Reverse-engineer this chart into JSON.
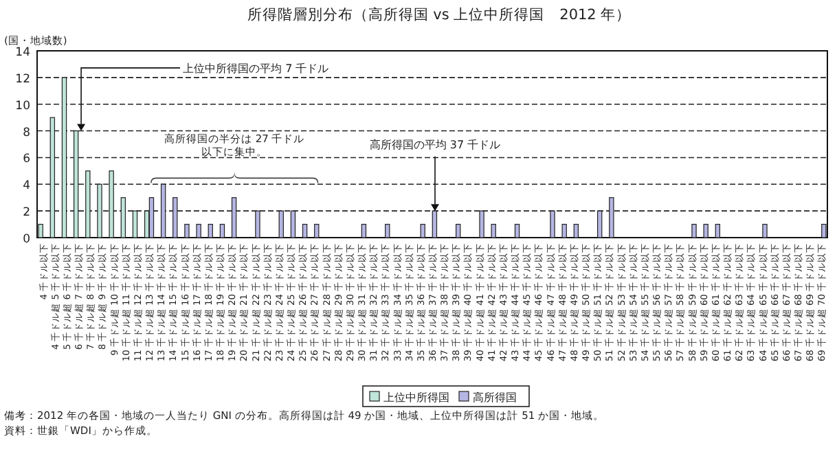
{
  "chart_data": {
    "type": "bar",
    "title": "所得階層別分布（高所得国 vs 上位中所得国　2012 年）",
    "ylabel": "(国・地域数)",
    "categories": [
      "4 千ドル以下",
      "4 千ドル超 5 千ドル以下",
      "5 千ドル超 6 千ドル以下",
      "6 千ドル超 7 千ドル以下",
      "7 千ドル超 8 千ドル以下",
      "8 千ドル超 9 千ドル以下",
      "9 千ドル超 10 千ドル以下",
      "10 千ドル超 11 千ドル以下",
      "11 千ドル超 12 千ドル以下",
      "12 千ドル超 13 千ドル以下",
      "13 千ドル超 14 千ドル以下",
      "14 千ドル超 15 千ドル以下",
      "15 千ドル超 16 千ドル以下",
      "16 千ドル超 17 千ドル以下",
      "17 千ドル超 18 千ドル以下",
      "18 千ドル超 19 千ドル以下",
      "19 千ドル超 20 千ドル以下",
      "20 千ドル超 21 千ドル以下",
      "21 千ドル超 22 千ドル以下",
      "22 千ドル超 23 千ドル以下",
      "23 千ドル超 24 千ドル以下",
      "24 千ドル超 25 千ドル以下",
      "25 千ドル超 26 千ドル以下",
      "26 千ドル超 27 千ドル以下",
      "27 千ドル超 28 千ドル以下",
      "28 千ドル超 29 千ドル以下",
      "29 千ドル超 30 千ドル以下",
      "30 千ドル超 31 千ドル以下",
      "31 千ドル超 32 千ドル以下",
      "32 千ドル超 33 千ドル以下",
      "33 千ドル超 34 千ドル以下",
      "34 千ドル超 35 千ドル以下",
      "35 千ドル超 36 千ドル以下",
      "36 千ドル超 37 千ドル以下",
      "37 千ドル超 38 千ドル以下",
      "38 千ドル超 39 千ドル以下",
      "39 千ドル超 40 千ドル以下",
      "40 千ドル超 41 千ドル以下",
      "41 千ドル超 42 千ドル以下",
      "42 千ドル超 43 千ドル以下",
      "43 千ドル超 44 千ドル以下",
      "44 千ドル超 45 千ドル以下",
      "45 千ドル超 46 千ドル以下",
      "46 千ドル超 47 千ドル以下",
      "47 千ドル超 48 千ドル以下",
      "48 千ドル超 49 千ドル以下",
      "49 千ドル超 50 千ドル以下",
      "50 千ドル超 51 千ドル以下",
      "51 千ドル超 52 千ドル以下",
      "52 千ドル超 53 千ドル以下",
      "53 千ドル超 54 千ドル以下",
      "54 千ドル超 55 千ドル以下",
      "55 千ドル超 56 千ドル以下",
      "56 千ドル超 57 千ドル以下",
      "57 千ドル超 58 千ドル以下",
      "58 千ドル超 59 千ドル以下",
      "59 千ドル超 60 千ドル以下",
      "60 千ドル超 61 千ドル以下",
      "61 千ドル超 62 千ドル以下",
      "62 千ドル超 63 千ドル以下",
      "63 千ドル超 64 千ドル以下",
      "64 千ドル超 65 千ドル以下",
      "65 千ドル超 66 千ドル以下",
      "66 千ドル超 67 千ドル以下",
      "67 千ドル超 68 千ドル以下",
      "68 千ドル超 69 千ドル以下",
      "69 千ドル超 70 千ドル以下"
    ],
    "series": [
      {
        "name": "上位中所得国",
        "color": "#bfe4da",
        "values": [
          1,
          9,
          12,
          8,
          5,
          4,
          5,
          3,
          2,
          2,
          null,
          null,
          null,
          null,
          null,
          null,
          null,
          null,
          null,
          null,
          null,
          null,
          null,
          null,
          null,
          null,
          null,
          null,
          null,
          null,
          null,
          null,
          null,
          null,
          null,
          null,
          null,
          null,
          null,
          null,
          null,
          null,
          null,
          null,
          null,
          null,
          null,
          null,
          null,
          null,
          null,
          null,
          null,
          null,
          null,
          null,
          null,
          null,
          null,
          null,
          null,
          null,
          null,
          null,
          null,
          null,
          null
        ]
      },
      {
        "name": "高所得国",
        "color": "#b6b6e4",
        "values": [
          null,
          null,
          null,
          null,
          null,
          null,
          null,
          null,
          null,
          3,
          4,
          3,
          1,
          1,
          1,
          1,
          3,
          0,
          2,
          0,
          2,
          2,
          1,
          1,
          0,
          0,
          0,
          1,
          0,
          1,
          0,
          0,
          1,
          2,
          0,
          1,
          0,
          2,
          1,
          0,
          1,
          0,
          0,
          2,
          1,
          1,
          0,
          2,
          3,
          0,
          0,
          0,
          0,
          0,
          0,
          1,
          1,
          1,
          0,
          0,
          0,
          1,
          0,
          0,
          0,
          0,
          1
        ]
      }
    ],
    "ylim": [
      0,
      14
    ],
    "yticks": [
      0,
      2,
      4,
      6,
      8,
      10,
      12,
      14
    ],
    "grid": "y",
    "legend": "bottom",
    "annotations": [
      {
        "text": "上位中所得国の平均 7 千ドル",
        "x": "6 千ドル超 7 千ドル以下",
        "y": 8
      },
      {
        "text": "高所得国の平均 37 千ドル",
        "x": "36 千ドル超 37 千ドル以下",
        "y": 2
      },
      "高所得国の半分は 27 千ドル",
      "以下に集中。",
      "備考：2012 年の各国・地域の一人当たり GNI の分布。高所得国は計 49 か国・地域、上位中所得国は計 51 か国・地域。",
      "資料：世銀「WDI」から作成。"
    ]
  }
}
